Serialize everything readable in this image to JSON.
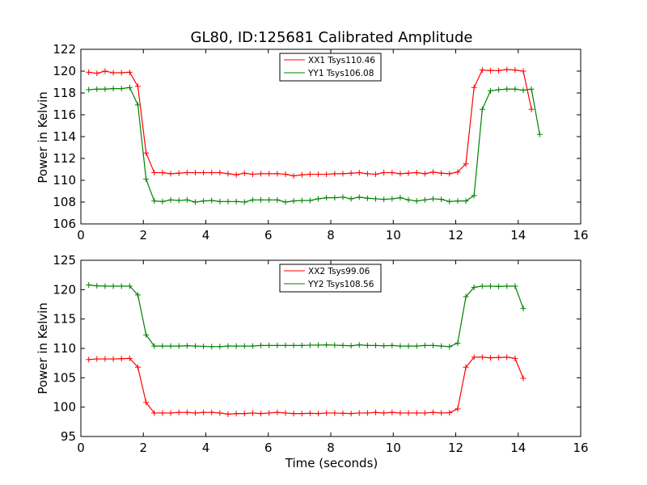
{
  "chart_data": [
    {
      "type": "line",
      "title": "GL80, ID:125681 Calibrated Amplitude",
      "xlabel": "",
      "ylabel": "Power in Kelvin",
      "xlim": [
        0,
        16
      ],
      "ylim": [
        106,
        122
      ],
      "xticks": [
        0,
        2,
        4,
        6,
        8,
        10,
        12,
        14,
        16
      ],
      "yticks": [
        106,
        108,
        110,
        112,
        114,
        116,
        118,
        120,
        122
      ],
      "legend": "top-center",
      "grid": false,
      "series": [
        {
          "name": "XX1 Tsys110.46",
          "color": "#ff0000",
          "marker": "+",
          "values": [
            119.9,
            119.8,
            120.0,
            119.85,
            119.85,
            119.9,
            118.6,
            112.5,
            110.7,
            110.7,
            110.6,
            110.65,
            110.7,
            110.7,
            110.7,
            110.7,
            110.7,
            110.6,
            110.5,
            110.65,
            110.55,
            110.6,
            110.6,
            110.6,
            110.55,
            110.4,
            110.5,
            110.55,
            110.55,
            110.55,
            110.6,
            110.6,
            110.65,
            110.7,
            110.6,
            110.55,
            110.7,
            110.7,
            110.6,
            110.65,
            110.7,
            110.6,
            110.75,
            110.65,
            110.6,
            110.75,
            111.5,
            118.5,
            120.1,
            120.05,
            120.05,
            120.15,
            120.1,
            120.0,
            116.5
          ]
        },
        {
          "name": "YY1 Tsys106.08",
          "color": "#008000",
          "marker": "+",
          "values": [
            118.3,
            118.35,
            118.35,
            118.4,
            118.4,
            118.5,
            116.9,
            110.1,
            108.1,
            108.05,
            108.2,
            108.15,
            108.2,
            108.0,
            108.1,
            108.15,
            108.05,
            108.05,
            108.05,
            108.0,
            108.2,
            108.2,
            108.2,
            108.2,
            108.0,
            108.1,
            108.15,
            108.15,
            108.3,
            108.4,
            108.4,
            108.45,
            108.3,
            108.45,
            108.35,
            108.3,
            108.25,
            108.3,
            108.4,
            108.2,
            108.1,
            108.2,
            108.3,
            108.25,
            108.05,
            108.1,
            108.1,
            108.6,
            116.5,
            118.2,
            118.3,
            118.35,
            118.35,
            118.25,
            118.35,
            114.2
          ]
        }
      ]
    },
    {
      "type": "line",
      "title": "",
      "xlabel": "Time (seconds)",
      "ylabel": "Power in Kelvin",
      "xlim": [
        0,
        16
      ],
      "ylim": [
        95,
        125
      ],
      "xticks": [
        0,
        2,
        4,
        6,
        8,
        10,
        12,
        14,
        16
      ],
      "yticks": [
        95,
        100,
        105,
        110,
        115,
        120,
        125
      ],
      "legend": "top-center",
      "grid": false,
      "series": [
        {
          "name": "XX2 Tsys99.06",
          "color": "#ff0000",
          "marker": "+",
          "values": [
            108.1,
            108.2,
            108.2,
            108.2,
            108.25,
            108.3,
            106.8,
            100.8,
            99.0,
            99.0,
            99.0,
            99.1,
            99.1,
            99.0,
            99.1,
            99.1,
            99.0,
            98.8,
            98.9,
            98.9,
            99.0,
            98.9,
            99.0,
            99.1,
            99.0,
            98.9,
            98.9,
            98.95,
            98.9,
            99.0,
            99.0,
            98.95,
            98.9,
            99.0,
            99.0,
            99.1,
            99.0,
            99.1,
            99.0,
            99.0,
            99.0,
            99.0,
            99.1,
            99.0,
            99.05,
            99.7,
            106.8,
            108.5,
            108.5,
            108.4,
            108.45,
            108.5,
            108.3,
            104.9
          ]
        },
        {
          "name": "YY2 Tsys108.56",
          "color": "#008000",
          "marker": "+",
          "values": [
            120.8,
            120.65,
            120.6,
            120.6,
            120.6,
            120.6,
            119.1,
            112.3,
            110.4,
            110.4,
            110.4,
            110.4,
            110.45,
            110.4,
            110.35,
            110.3,
            110.3,
            110.4,
            110.4,
            110.4,
            110.4,
            110.5,
            110.5,
            110.5,
            110.5,
            110.5,
            110.5,
            110.55,
            110.55,
            110.6,
            110.55,
            110.5,
            110.45,
            110.6,
            110.5,
            110.5,
            110.45,
            110.5,
            110.4,
            110.4,
            110.4,
            110.5,
            110.5,
            110.4,
            110.3,
            110.9,
            118.8,
            120.4,
            120.6,
            120.6,
            120.55,
            120.6,
            120.6,
            116.8
          ]
        }
      ]
    }
  ]
}
